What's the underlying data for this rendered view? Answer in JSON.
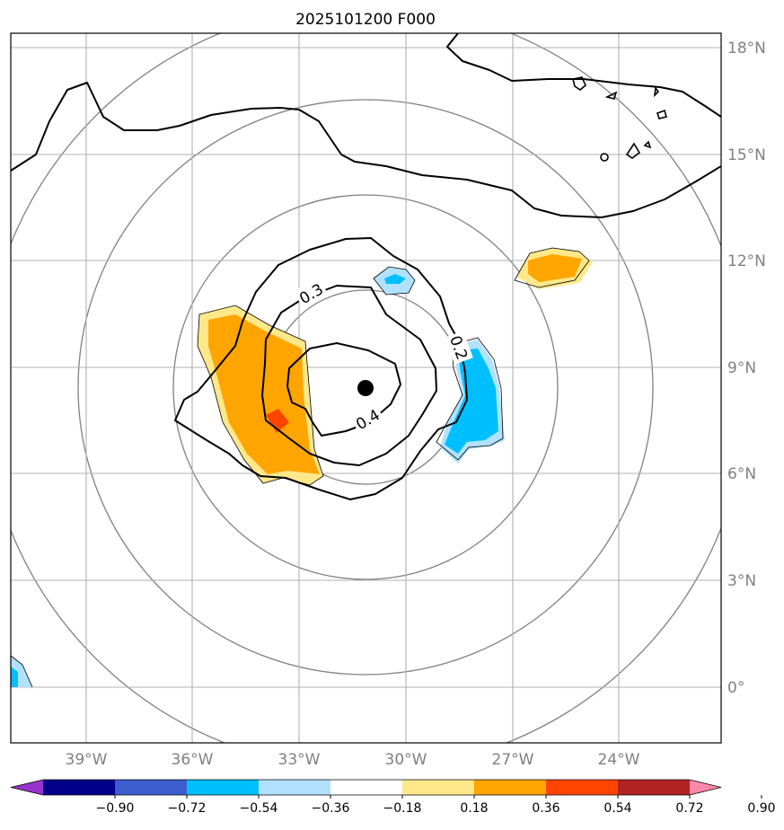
{
  "title": "2025101200 F000",
  "map": {
    "lat_labels": [
      "18°N",
      "15°N",
      "12°N",
      "9°N",
      "6°N",
      "3°N",
      "0°"
    ],
    "lon_labels": [
      "39°W",
      "36°W",
      "33°W",
      "30°W",
      "27°W",
      "24°W"
    ],
    "storm_center": "31.1°W 8.4°N",
    "contour_labels": [
      "0.3",
      "0.2",
      "0.4"
    ]
  },
  "colorbar": {
    "tick_labels": [
      "−0.90",
      "−0.72",
      "−0.54",
      "−0.36",
      "−0.18",
      "0.18",
      "0.36",
      "0.54",
      "0.72",
      "0.90"
    ],
    "colors": [
      "#9932cc",
      "#00008b",
      "#3a5fcd",
      "#00bfff",
      "#b0e2ff",
      "#ffffff",
      "#ffe88a",
      "#ffa500",
      "#ff4500",
      "#b22222",
      "#ff88aa"
    ]
  }
}
